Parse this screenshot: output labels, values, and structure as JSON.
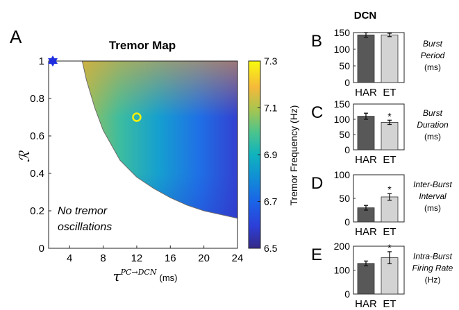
{
  "panel_labels": {
    "a": "A",
    "b": "B",
    "c": "C",
    "d": "D",
    "e": "E"
  },
  "right_header": "DCN",
  "chart_data": [
    {
      "id": "A",
      "type": "heatmap",
      "title": "Tremor Map",
      "xlabel_symbol": "τ",
      "xlabel_superscript": "PC→DCN",
      "xlabel_unit": "(ms)",
      "ylabel": "ℛ",
      "xlim": [
        1.5,
        24
      ],
      "ylim": [
        0,
        1
      ],
      "xticks": [
        4,
        8,
        12,
        16,
        20,
        24
      ],
      "yticks": [
        0,
        0.2,
        0.4,
        0.6,
        0.8,
        1
      ],
      "grid": false,
      "colorbar": {
        "label": "Tremor Frequency (Hz)",
        "range": [
          6.5,
          7.3
        ],
        "ticks": [
          "7.3",
          "7.1",
          "6.9",
          "6.7",
          "6.5"
        ],
        "colormap": "parula"
      },
      "boundary": [
        {
          "x": 5.5,
          "y": 1.0
        },
        {
          "x": 6.0,
          "y": 0.9
        },
        {
          "x": 7.0,
          "y": 0.75
        },
        {
          "x": 8.0,
          "y": 0.63
        },
        {
          "x": 10.0,
          "y": 0.47
        },
        {
          "x": 12.0,
          "y": 0.38
        },
        {
          "x": 14.0,
          "y": 0.32
        },
        {
          "x": 16.0,
          "y": 0.27
        },
        {
          "x": 18.0,
          "y": 0.23
        },
        {
          "x": 20.0,
          "y": 0.2
        },
        {
          "x": 22.0,
          "y": 0.18
        },
        {
          "x": 24.0,
          "y": 0.16
        }
      ],
      "no_tremor_text": [
        "No tremor",
        "oscillations"
      ],
      "markers": [
        {
          "kind": "star",
          "x": 2.0,
          "y": 1.0,
          "color": "#1f2fe0"
        },
        {
          "kind": "circle",
          "x": 12.0,
          "y": 0.7,
          "color": "#f4f10a"
        }
      ]
    },
    {
      "id": "B",
      "type": "bar",
      "categories": [
        "HAR",
        "ET"
      ],
      "values": [
        143,
        143
      ],
      "errors": [
        7,
        5
      ],
      "ylim": [
        0,
        150
      ],
      "yticks": [
        0,
        50,
        100,
        150
      ],
      "significant": [
        false,
        false
      ],
      "measure": [
        "Burst",
        "Period"
      ],
      "unit": "(ms)",
      "colors": [
        "#585858",
        "#d3d3d3"
      ]
    },
    {
      "id": "C",
      "type": "bar",
      "categories": [
        "HAR",
        "ET"
      ],
      "values": [
        110,
        90
      ],
      "errors": [
        10,
        7
      ],
      "ylim": [
        0,
        150
      ],
      "yticks": [
        0,
        50,
        100,
        150
      ],
      "significant": [
        false,
        true
      ],
      "measure": [
        "Burst",
        "Duration"
      ],
      "unit": "(ms)",
      "colors": [
        "#585858",
        "#d3d3d3"
      ]
    },
    {
      "id": "D",
      "type": "bar",
      "categories": [
        "HAR",
        "ET"
      ],
      "values": [
        30,
        53
      ],
      "errors": [
        5,
        7
      ],
      "ylim": [
        0,
        100
      ],
      "yticks": [
        0,
        50,
        100
      ],
      "significant": [
        false,
        true
      ],
      "measure": [
        "Inter-Burst",
        "Interval"
      ],
      "unit": "(ms)",
      "colors": [
        "#585858",
        "#d3d3d3"
      ]
    },
    {
      "id": "E",
      "type": "bar",
      "categories": [
        "HAR",
        "ET"
      ],
      "values": [
        128,
        152
      ],
      "errors": [
        10,
        25
      ],
      "ylim": [
        0,
        200
      ],
      "yticks": [
        0,
        100,
        200
      ],
      "significant": [
        false,
        true
      ],
      "measure": [
        "Intra-Burst",
        "Firing Rate"
      ],
      "unit": "(Hz)",
      "colors": [
        "#585858",
        "#d3d3d3"
      ]
    }
  ]
}
